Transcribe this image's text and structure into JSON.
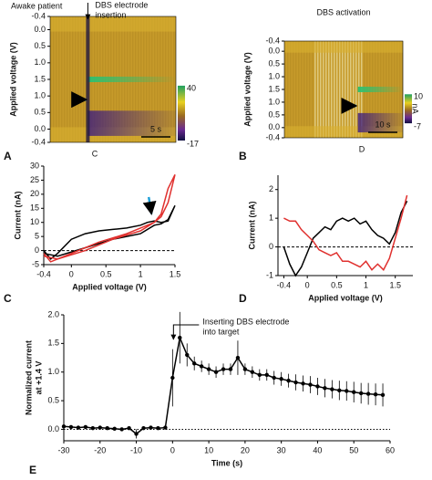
{
  "chart_data": [
    {
      "type": "colorplot",
      "panel_label": "A",
      "title": "Awake patient",
      "annotation": [
        "DBS electrode",
        "insertion"
      ],
      "ylabel": "Applied voltage (V)",
      "x_label": "C",
      "yticks": [
        -0.4,
        {
          "value": 0,
          "label": "0.0"
        },
        0.5,
        {
          "value": 1,
          "label": "1.0"
        },
        1.5,
        {
          "value": 1,
          "label": "1.0"
        },
        0.5,
        {
          "value": 0,
          "label": "0.0"
        },
        -0.4
      ],
      "cbar_ticks": [
        40,
        -17
      ],
      "scalebar": "5 s"
    },
    {
      "type": "colorplot",
      "panel_label": "B",
      "title": "DBS activation",
      "ylabel": "Applied voltage (V)",
      "x_label": "D",
      "yticks": [
        -0.4,
        {
          "value": 0,
          "label": "0.0"
        },
        0.5,
        {
          "value": 1,
          "label": "1.0"
        },
        1.5,
        {
          "value": 1,
          "label": "1.0"
        },
        0.5,
        {
          "value": 0,
          "label": "0.0"
        },
        -0.4
      ],
      "cbar_ticks": [
        10,
        -7
      ],
      "cbar_unit": "nA",
      "scalebar": "10 s"
    },
    {
      "type": "line",
      "panel_label": "C",
      "xlabel": "Applied voltage (V)",
      "ylabel": "Current (nA)",
      "x": [
        -0.4,
        -0.3,
        -0.2,
        0,
        0.2,
        0.4,
        0.6,
        0.8,
        1.0,
        1.1,
        1.2,
        1.3,
        1.4,
        1.5,
        1.4,
        1.3,
        1.2,
        1.0,
        0.6,
        0.2,
        -0.2,
        -0.4
      ],
      "series": [
        {
          "name": "black",
          "color": "#000000",
          "values": [
            0,
            -3,
            -1,
            4,
            6,
            7,
            7.5,
            8,
            9,
            10,
            10.5,
            10,
            10.5,
            16,
            11,
            9.5,
            9,
            6,
            4,
            1,
            -2,
            -1
          ]
        },
        {
          "name": "red",
          "color": "#e0312f",
          "values": [
            -1,
            -4,
            -3,
            -1,
            1,
            3,
            4.5,
            6,
            8,
            9,
            10,
            13,
            22,
            27,
            17,
            12,
            10,
            7,
            4,
            0,
            -3,
            -2
          ]
        }
      ],
      "xlim": [
        -0.4,
        1.5
      ],
      "xticks": [
        -0.4,
        0,
        0.5,
        1,
        1.5
      ],
      "ylim": [
        -5,
        30
      ],
      "yticks": [
        -5,
        0,
        5,
        10,
        15,
        20,
        25,
        30
      ],
      "reference_line": 0
    },
    {
      "type": "line",
      "panel_label": "D",
      "xlabel": "Applied voltage (V)",
      "ylabel": "Current (nA)",
      "x": [
        -0.4,
        -0.3,
        -0.2,
        -0.1,
        0,
        0.1,
        0.2,
        0.3,
        0.4,
        0.5,
        0.6,
        0.7,
        0.8,
        0.9,
        1.0,
        1.1,
        1.2,
        1.3,
        1.4,
        1.5,
        1.6,
        1.7
      ],
      "series": [
        {
          "name": "black",
          "color": "#000000",
          "values": [
            0,
            -0.6,
            -1,
            -0.7,
            -0.2,
            0.3,
            0.5,
            0.7,
            0.6,
            0.9,
            1.0,
            0.9,
            1.0,
            0.8,
            0.9,
            0.6,
            0.4,
            0.3,
            0.1,
            0.5,
            1.2,
            1.6
          ]
        },
        {
          "name": "red",
          "color": "#e0312f",
          "values": [
            1,
            0.9,
            0.9,
            0.6,
            0.4,
            0.2,
            -0.1,
            -0.2,
            -0.3,
            -0.2,
            -0.5,
            -0.5,
            -0.6,
            -0.7,
            -0.5,
            -0.8,
            -0.6,
            -0.8,
            -0.4,
            0.3,
            1.0,
            1.8
          ]
        }
      ],
      "xlim": [
        -0.5,
        1.8
      ],
      "xticks": [
        -0.4,
        0,
        0.5,
        1,
        1.5
      ],
      "ylim": [
        -1,
        2.5
      ],
      "yticks": [
        -1,
        0,
        1,
        2
      ],
      "reference_line": 0
    },
    {
      "type": "errorline",
      "panel_label": "E",
      "xlabel": "Time (s)",
      "ylabel": [
        "Normalized current",
        "at +1.4 V"
      ],
      "annotation": [
        "Inserting DBS electrode",
        "into target"
      ],
      "x": [
        -30,
        -28,
        -26,
        -24,
        -22,
        -20,
        -18,
        -16,
        -14,
        -12,
        -10,
        -8,
        -6,
        -4,
        -2,
        0,
        2,
        4,
        6,
        8,
        10,
        12,
        14,
        16,
        18,
        20,
        22,
        24,
        26,
        28,
        30,
        32,
        34,
        36,
        38,
        40,
        42,
        44,
        46,
        48,
        50,
        52,
        54,
        56,
        58
      ],
      "series": [
        {
          "name": "normalized",
          "color": "#000000",
          "values": [
            0.05,
            0.04,
            0.03,
            0.04,
            0.02,
            0.03,
            0.02,
            0.01,
            0.0,
            0.02,
            -0.08,
            0.02,
            0.03,
            0.02,
            0.03,
            0.9,
            1.6,
            1.3,
            1.15,
            1.1,
            1.05,
            1.0,
            1.05,
            1.05,
            1.25,
            1.05,
            1.0,
            0.95,
            0.95,
            0.9,
            0.88,
            0.85,
            0.82,
            0.8,
            0.78,
            0.75,
            0.72,
            0.7,
            0.68,
            0.67,
            0.65,
            0.63,
            0.62,
            0.61,
            0.6
          ],
          "errors": [
            0.03,
            0.03,
            0.03,
            0.03,
            0.03,
            0.03,
            0.03,
            0.03,
            0.03,
            0.03,
            0.08,
            0.03,
            0.03,
            0.03,
            0.03,
            0.5,
            0.45,
            0.2,
            0.12,
            0.1,
            0.1,
            0.1,
            0.1,
            0.1,
            0.3,
            0.1,
            0.1,
            0.1,
            0.1,
            0.12,
            0.12,
            0.12,
            0.14,
            0.14,
            0.15,
            0.15,
            0.16,
            0.16,
            0.17,
            0.17,
            0.18,
            0.18,
            0.19,
            0.19,
            0.2
          ]
        }
      ],
      "xlim": [
        -30,
        60
      ],
      "xticks": [
        -30,
        -20,
        -10,
        0,
        10,
        20,
        30,
        40,
        50,
        60
      ],
      "ylim": [
        -0.2,
        2.0
      ],
      "yticks": [
        {
          "value": 0,
          "label": "0.0"
        },
        0.5,
        {
          "value": 1,
          "label": "1.0"
        },
        1.5,
        {
          "value": 2,
          "label": "2.0"
        }
      ],
      "reference_line": 0
    }
  ]
}
